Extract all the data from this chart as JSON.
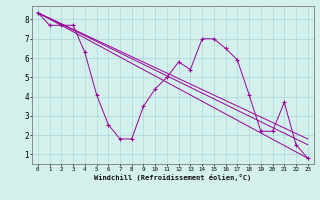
{
  "xlabel": "Windchill (Refroidissement éolien,°C)",
  "bg_color": "#d4f0ec",
  "grid_color": "#a8d8d8",
  "line_color": "#990099",
  "xlim": [
    -0.5,
    23.5
  ],
  "ylim": [
    0.5,
    8.7
  ],
  "xticks": [
    0,
    1,
    2,
    3,
    4,
    5,
    6,
    7,
    8,
    9,
    10,
    11,
    12,
    13,
    14,
    15,
    16,
    17,
    18,
    19,
    20,
    21,
    22,
    23
  ],
  "yticks": [
    1,
    2,
    3,
    4,
    5,
    6,
    7,
    8
  ],
  "line1_x": [
    0,
    1,
    2,
    3,
    4,
    5,
    6,
    7,
    8,
    9,
    10,
    11,
    12,
    13,
    14,
    15,
    16,
    17,
    18,
    19,
    20,
    21,
    22,
    23
  ],
  "line1_y": [
    8.35,
    7.7,
    7.7,
    7.7,
    6.3,
    4.1,
    2.55,
    1.8,
    1.8,
    3.5,
    4.4,
    5.0,
    5.8,
    5.4,
    7.0,
    7.0,
    6.5,
    5.9,
    4.1,
    2.2,
    2.2,
    3.7,
    1.5,
    0.8
  ],
  "line2_x": [
    0,
    23
  ],
  "line2_y": [
    8.35,
    0.8
  ],
  "line3_x": [
    0,
    23
  ],
  "line3_y": [
    8.35,
    1.5
  ],
  "line4_x": [
    0,
    23
  ],
  "line4_y": [
    8.35,
    1.8
  ]
}
